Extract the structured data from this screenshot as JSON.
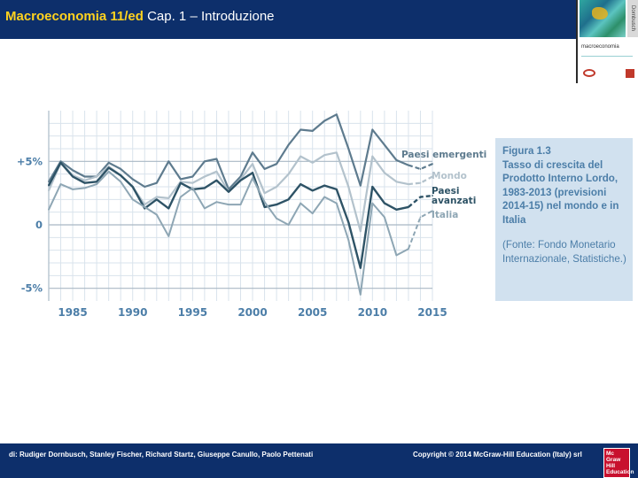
{
  "header": {
    "title_strong": "Macroeconomia 11/ed",
    "title_rest": "Cap. 1 – Introduzione"
  },
  "cover": {
    "title": "macroeconomia",
    "side_text": "Dornbusch"
  },
  "figure": {
    "number": "Figura 1.3",
    "title": "Tasso di crescita del Prodotto Interno Lordo, 1983-2013 (previsioni 2014-15) nel mondo e in Italia",
    "source": "(Fonte: Fondo Monetario Internazionale, Statistiche.)"
  },
  "footer": {
    "authors": "di: Rudiger Dornbusch, Stanley Fischer, Richard Startz, Giuseppe Canullo, Paolo Pettenati",
    "copyright": "Copyright © 2014 McGraw-Hill Education (Italy) srl",
    "logo_text": "Mc Graw Hill Education"
  },
  "colors": {
    "header_bg": "#0d2f6b",
    "header_accent": "#ffd21f",
    "axis_text": "#4c7ea8",
    "grid": "#d9e3ec",
    "series_emergenti": "#5e7b8e",
    "series_mondo": "#b3c2cc",
    "series_avanzati": "#2e5366",
    "series_italia": "#8ea6b4"
  },
  "chart_data": {
    "type": "line",
    "title": "",
    "xlabel": "",
    "ylabel": "",
    "xlim": [
      1983,
      2015
    ],
    "ylim": [
      -6,
      9
    ],
    "x_ticks": [
      1985,
      1990,
      1995,
      2000,
      2005,
      2010,
      2015
    ],
    "x_tick_labels": [
      "1985",
      "1990",
      "1995",
      "2000",
      "2005",
      "2010",
      "2015"
    ],
    "y_ticks": [
      5,
      0,
      -5
    ],
    "y_tick_labels": [
      "+5%",
      "0",
      "-5%"
    ],
    "forecast_from": 2013,
    "series": [
      {
        "name": "Paesi emergenti",
        "x": [
          1983,
          1984,
          1985,
          1986,
          1987,
          1988,
          1989,
          1990,
          1991,
          1992,
          1993,
          1994,
          1995,
          1996,
          1997,
          1998,
          1999,
          2000,
          2001,
          2002,
          2003,
          2004,
          2005,
          2006,
          2007,
          2008,
          2009,
          2010,
          2011,
          2012,
          2013,
          2014,
          2015
        ],
        "values": [
          3.4,
          5.0,
          4.3,
          3.8,
          3.8,
          4.9,
          4.4,
          3.6,
          3.0,
          3.3,
          5.0,
          3.6,
          3.8,
          5.0,
          5.2,
          2.8,
          3.8,
          5.7,
          4.4,
          4.8,
          6.3,
          7.5,
          7.4,
          8.2,
          8.7,
          6.0,
          3.1,
          7.5,
          6.3,
          5.1,
          4.7,
          4.4,
          4.8
        ]
      },
      {
        "name": "Mondo",
        "x": [
          1983,
          1984,
          1985,
          1986,
          1987,
          1988,
          1989,
          1990,
          1991,
          1992,
          1993,
          1994,
          1995,
          1996,
          1997,
          1998,
          1999,
          2000,
          2001,
          2002,
          2003,
          2004,
          2005,
          2006,
          2007,
          2008,
          2009,
          2010,
          2011,
          2012,
          2013,
          2014,
          2015
        ],
        "values": [
          2.7,
          4.9,
          3.9,
          3.5,
          3.8,
          4.6,
          3.9,
          3.0,
          1.6,
          2.2,
          2.1,
          3.4,
          3.3,
          3.8,
          4.2,
          2.6,
          3.6,
          4.8,
          2.5,
          3.0,
          4.0,
          5.4,
          4.9,
          5.5,
          5.7,
          3.0,
          -0.5,
          5.4,
          4.1,
          3.4,
          3.2,
          3.3,
          3.8
        ]
      },
      {
        "name": "Paesi avanzati",
        "x": [
          1983,
          1984,
          1985,
          1986,
          1987,
          1988,
          1989,
          1990,
          1991,
          1992,
          1993,
          1994,
          1995,
          1996,
          1997,
          1998,
          1999,
          2000,
          2001,
          2002,
          2003,
          2004,
          2005,
          2006,
          2007,
          2008,
          2009,
          2010,
          2011,
          2012,
          2013,
          2014,
          2015
        ],
        "values": [
          3.1,
          4.9,
          3.8,
          3.3,
          3.4,
          4.5,
          3.9,
          3.0,
          1.3,
          2.0,
          1.3,
          3.3,
          2.8,
          2.9,
          3.5,
          2.6,
          3.5,
          4.1,
          1.4,
          1.6,
          2.0,
          3.2,
          2.7,
          3.1,
          2.8,
          0.2,
          -3.4,
          3.0,
          1.7,
          1.2,
          1.4,
          2.2,
          2.3
        ]
      },
      {
        "name": "Italia",
        "x": [
          1983,
          1984,
          1985,
          1986,
          1987,
          1988,
          1989,
          1990,
          1991,
          1992,
          1993,
          1994,
          1995,
          1996,
          1997,
          1998,
          1999,
          2000,
          2001,
          2002,
          2003,
          2004,
          2005,
          2006,
          2007,
          2008,
          2009,
          2010,
          2011,
          2012,
          2013,
          2014,
          2015
        ],
        "values": [
          1.2,
          3.2,
          2.8,
          2.9,
          3.2,
          4.2,
          3.4,
          2.0,
          1.4,
          0.8,
          -0.9,
          2.2,
          2.9,
          1.3,
          1.8,
          1.6,
          1.6,
          3.7,
          1.8,
          0.5,
          0.0,
          1.7,
          0.9,
          2.2,
          1.7,
          -1.2,
          -5.5,
          1.7,
          0.6,
          -2.4,
          -1.9,
          0.6,
          1.1
        ]
      }
    ]
  }
}
